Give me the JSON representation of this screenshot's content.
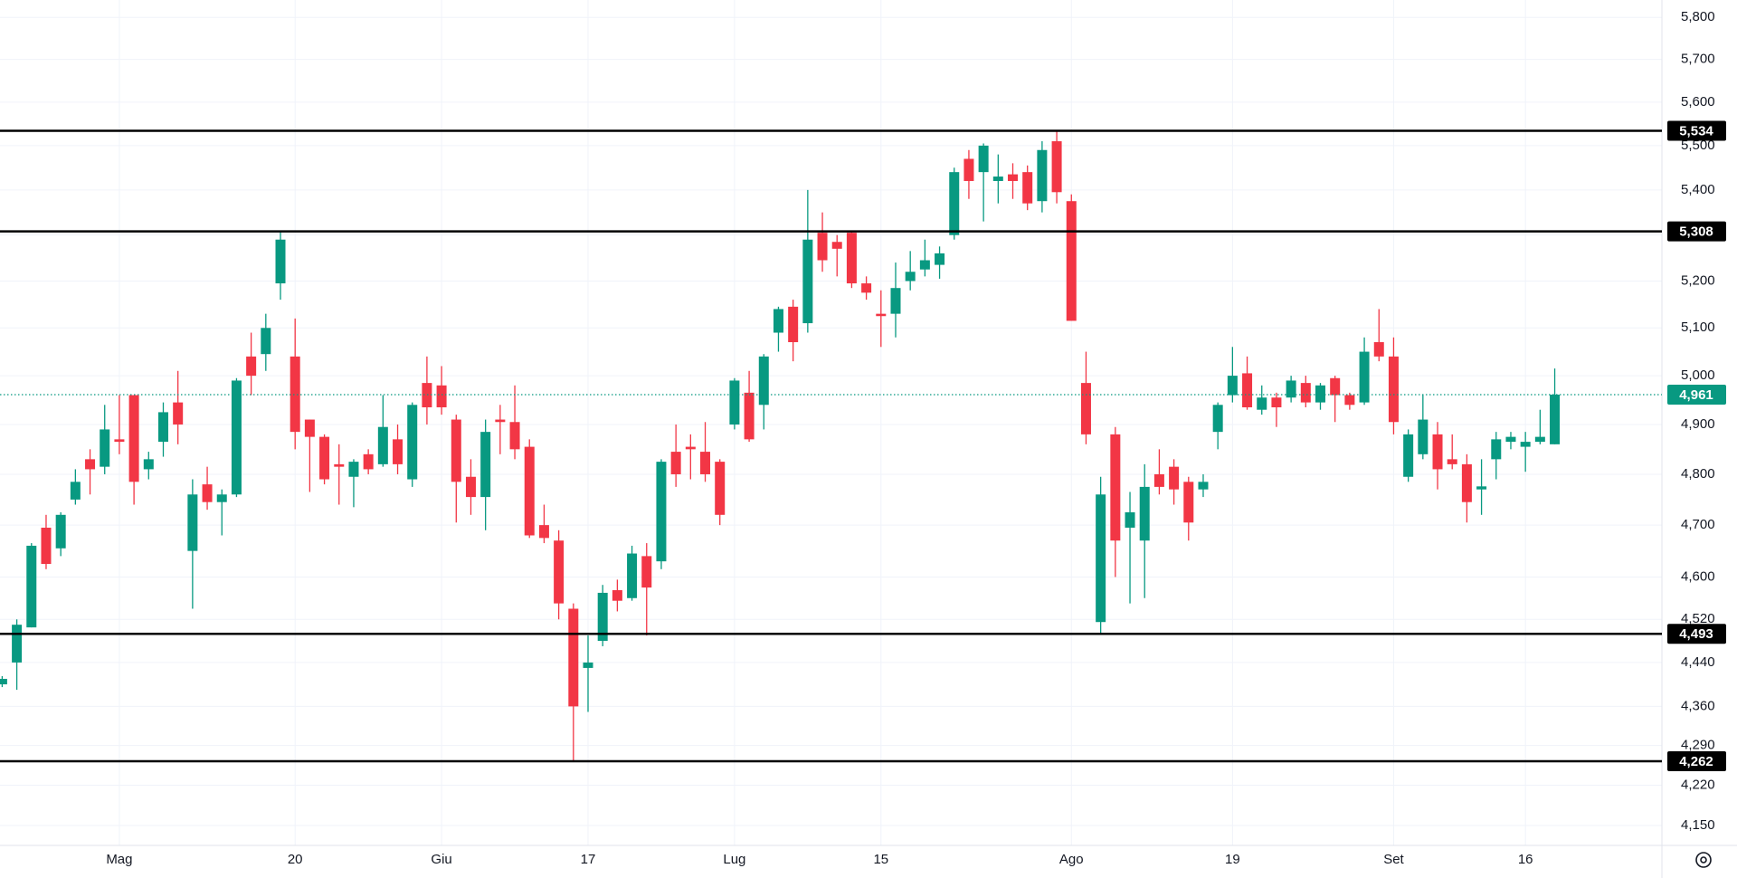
{
  "chart_data": {
    "type": "candlestick",
    "log_scale": true,
    "grid": true,
    "up_color": "#089981",
    "down_color": "#f23645",
    "categories": [
      null,
      null,
      null,
      null,
      null,
      null,
      null,
      null,
      "Mag",
      null,
      null,
      null,
      null,
      null,
      null,
      null,
      null,
      null,
      null,
      null,
      "20",
      null,
      null,
      null,
      null,
      null,
      null,
      null,
      null,
      null,
      "Giu",
      null,
      null,
      null,
      null,
      null,
      null,
      null,
      null,
      null,
      "17",
      null,
      null,
      null,
      null,
      null,
      null,
      null,
      null,
      null,
      "Lug",
      null,
      null,
      null,
      null,
      null,
      null,
      null,
      null,
      null,
      "15",
      null,
      null,
      null,
      null,
      null,
      null,
      null,
      null,
      null,
      null,
      null,
      null,
      "Ago",
      null,
      null,
      null,
      null,
      null,
      null,
      null,
      null,
      null,
      null,
      "19",
      null,
      null,
      null,
      null,
      null,
      null,
      null,
      null,
      null,
      null,
      "Set",
      null,
      null,
      null,
      null,
      null,
      null,
      null,
      null,
      "16",
      null,
      null
    ],
    "open": [
      4400,
      4440,
      4505,
      4695,
      4655,
      4750,
      4830,
      4815,
      4870,
      4960,
      4810,
      4865,
      4945,
      4650,
      4780,
      4745,
      4760,
      5040,
      5045,
      5195,
      5040,
      4910,
      4875,
      4820,
      4795,
      4840,
      4820,
      4870,
      4790,
      4985,
      4980,
      4910,
      4795,
      4755,
      4910,
      4905,
      4855,
      4700,
      4670,
      4540,
      4430,
      4480,
      4575,
      4560,
      4640,
      4630,
      4845,
      4855,
      4845,
      4825,
      4900,
      4965,
      4940,
      5090,
      5145,
      5110,
      5305,
      5285,
      5305,
      5195,
      5130,
      5130,
      5200,
      5225,
      5235,
      5300,
      5470,
      5440,
      5420,
      5435,
      5440,
      5375,
      5510,
      5375,
      4985,
      4515,
      4880,
      4695,
      4670,
      4800,
      4815,
      4785,
      4770,
      4885,
      4960,
      5005,
      4930,
      4955,
      4955,
      4985,
      4945,
      4995,
      4960,
      4945,
      5070,
      5040,
      4795,
      4840,
      4880,
      4830,
      4820,
      4770,
      4830,
      4865,
      4855,
      4865,
      4860
    ],
    "high": [
      4415,
      4520,
      4665,
      4720,
      4725,
      4810,
      4850,
      4940,
      4960,
      4960,
      4845,
      4945,
      5010,
      4790,
      4815,
      4770,
      4995,
      5090,
      5130,
      5308,
      5120,
      4910,
      4880,
      4860,
      4830,
      4850,
      4960,
      4900,
      4945,
      5040,
      5020,
      4920,
      4830,
      4910,
      4940,
      4980,
      4870,
      4740,
      4690,
      4550,
      4490,
      4585,
      4595,
      4660,
      4665,
      4830,
      4900,
      4880,
      4905,
      4830,
      4995,
      5010,
      5045,
      5145,
      5160,
      5400,
      5350,
      5300,
      5310,
      5210,
      5180,
      5240,
      5265,
      5290,
      5275,
      5450,
      5490,
      5505,
      5480,
      5460,
      5455,
      5510,
      5534,
      5390,
      5050,
      4795,
      4895,
      4765,
      4820,
      4850,
      4830,
      4795,
      4800,
      4945,
      5060,
      5040,
      4980,
      4965,
      5000,
      5000,
      4985,
      5000,
      4965,
      5080,
      5140,
      5080,
      4890,
      4960,
      4905,
      4880,
      4840,
      4830,
      4885,
      4885,
      4885,
      4930,
      5015
    ],
    "low": [
      4395,
      4390,
      4505,
      4615,
      4640,
      4740,
      4760,
      4800,
      4840,
      4740,
      4790,
      4835,
      4860,
      4540,
      4730,
      4680,
      4755,
      4960,
      5010,
      5160,
      4850,
      4765,
      4780,
      4740,
      4735,
      4800,
      4815,
      4800,
      4775,
      4900,
      4920,
      4705,
      4720,
      4690,
      4840,
      4830,
      4675,
      4665,
      4520,
      4262,
      4350,
      4470,
      4535,
      4555,
      4490,
      4615,
      4775,
      4790,
      4785,
      4700,
      4890,
      4865,
      4890,
      5050,
      5030,
      5090,
      5220,
      5210,
      5185,
      5160,
      5060,
      5080,
      5180,
      5210,
      5205,
      5290,
      5380,
      5330,
      5370,
      5380,
      5355,
      5350,
      5370,
      5115,
      4860,
      4493,
      4600,
      4550,
      4560,
      4760,
      4740,
      4670,
      4755,
      4850,
      4945,
      4930,
      4920,
      4895,
      4945,
      4935,
      4930,
      4905,
      4930,
      4940,
      5030,
      4880,
      4785,
      4830,
      4770,
      4810,
      4705,
      4720,
      4790,
      4850,
      4805,
      4860,
      4860
    ],
    "close": [
      4410,
      4510,
      4660,
      4625,
      4720,
      4785,
      4810,
      4890,
      4865,
      4785,
      4830,
      4925,
      4900,
      4760,
      4745,
      4760,
      4990,
      5000,
      5100,
      5290,
      4885,
      4875,
      4790,
      4815,
      4825,
      4810,
      4895,
      4820,
      4940,
      4935,
      4935,
      4785,
      4755,
      4885,
      4905,
      4850,
      4680,
      4675,
      4550,
      4360,
      4440,
      4570,
      4555,
      4645,
      4580,
      4825,
      4800,
      4850,
      4800,
      4720,
      4990,
      4870,
      5040,
      5140,
      5070,
      5290,
      5245,
      5270,
      5195,
      5175,
      5125,
      5185,
      5220,
      5245,
      5260,
      5440,
      5420,
      5500,
      5430,
      5420,
      5370,
      5490,
      5395,
      5115,
      4880,
      4760,
      4670,
      4725,
      4775,
      4775,
      4770,
      4705,
      4785,
      4940,
      5000,
      4935,
      4955,
      4935,
      4990,
      4945,
      4980,
      4960,
      4940,
      5050,
      5040,
      4905,
      4880,
      4910,
      4810,
      4820,
      4745,
      4776,
      4870,
      4875,
      4865,
      4875,
      4961
    ],
    "ylim": [
      4116,
      5842
    ],
    "yticks": [
      {
        "value": 5800,
        "label": "5,800"
      },
      {
        "value": 5700,
        "label": "5,700"
      },
      {
        "value": 5600,
        "label": "5,600"
      },
      {
        "value": 5500,
        "label": "5,500"
      },
      {
        "value": 5400,
        "label": "5,400"
      },
      {
        "value": 5300,
        "label": "5,300"
      },
      {
        "value": 5200,
        "label": "5,200"
      },
      {
        "value": 5100,
        "label": "5,100"
      },
      {
        "value": 5000,
        "label": "5,000"
      },
      {
        "value": 4900,
        "label": "4,900"
      },
      {
        "value": 4800,
        "label": "4,800"
      },
      {
        "value": 4700,
        "label": "4,700"
      },
      {
        "value": 4600,
        "label": "4,600"
      },
      {
        "value": 4520,
        "label": "4,520"
      },
      {
        "value": 4440,
        "label": "4,440"
      },
      {
        "value": 4360,
        "label": "4,360"
      },
      {
        "value": 4290,
        "label": "4,290"
      },
      {
        "value": 4220,
        "label": "4,220"
      },
      {
        "value": 4150,
        "label": "4,150"
      }
    ],
    "levels": [
      {
        "value": 5534,
        "label": "5,534"
      },
      {
        "value": 5308,
        "label": "5,308"
      },
      {
        "value": 4493,
        "label": "4,493"
      },
      {
        "value": 4262,
        "label": "4,262"
      }
    ],
    "level_color": "#000000",
    "last_price": {
      "value": 4961,
      "label": "4,961",
      "color": "#089981"
    }
  }
}
